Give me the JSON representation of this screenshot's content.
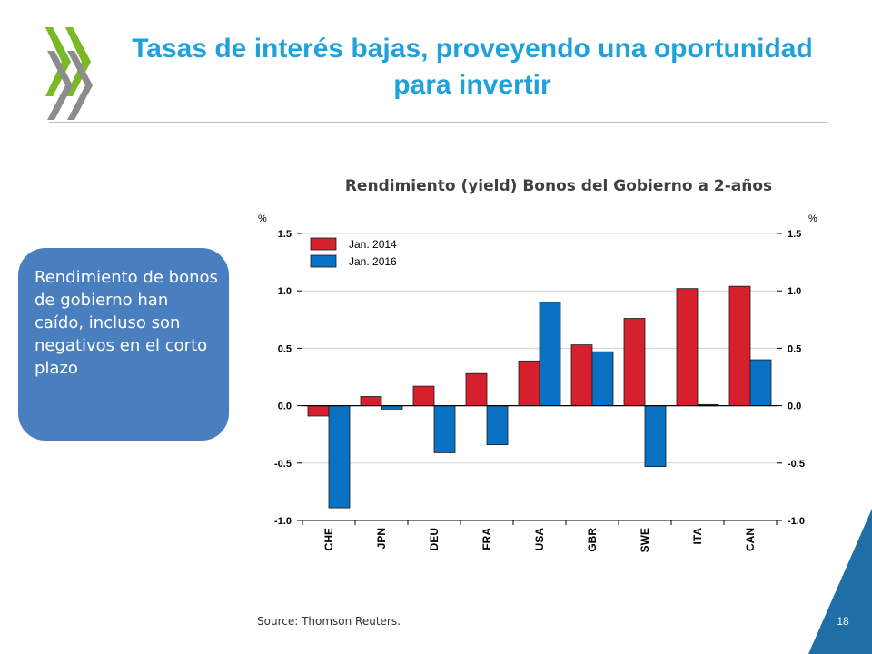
{
  "slide": {
    "title": "Tasas de interés bajas, proveyendo una oportunidad para invertir",
    "callout": "Rendimiento de bonos de gobierno  han caído, incluso son negativos en el corto plazo",
    "source": "Source: Thomson Reuters.",
    "page_number": "18",
    "logo_icon": "oecd-chevrons-icon"
  },
  "colors": {
    "title": "#1fa2dc",
    "callout_bg": "#4a7fbf",
    "series_2014": "#d7202e",
    "series_2016": "#0a72c2",
    "corner": "#1f6fa6"
  },
  "chart_data": {
    "type": "bar",
    "title": "Rendimiento (yield) Bonos del Gobierno a 2-años",
    "ylabel_left": "%",
    "ylabel_right": "%",
    "categories": [
      "CHE",
      "JPN",
      "DEU",
      "FRA",
      "USA",
      "GBR",
      "SWE",
      "ITA",
      "CAN"
    ],
    "series": [
      {
        "name": "Jan. 2014",
        "values": [
          -0.09,
          0.08,
          0.17,
          0.28,
          0.39,
          0.53,
          0.76,
          1.02,
          1.04
        ]
      },
      {
        "name": "Jan. 2016",
        "values": [
          -0.89,
          -0.03,
          -0.41,
          -0.34,
          0.9,
          0.47,
          -0.53,
          0.01,
          0.4
        ]
      }
    ],
    "ylim": [
      -1.0,
      1.5
    ],
    "yticks": [
      1.5,
      1.0,
      0.5,
      0.0,
      -0.5,
      -1.0
    ],
    "ytick_labels": [
      "1.5",
      "1.0",
      "0.5",
      "0.0",
      "-0.5",
      "-1.0"
    ],
    "grid": true,
    "legend": "top-left"
  }
}
